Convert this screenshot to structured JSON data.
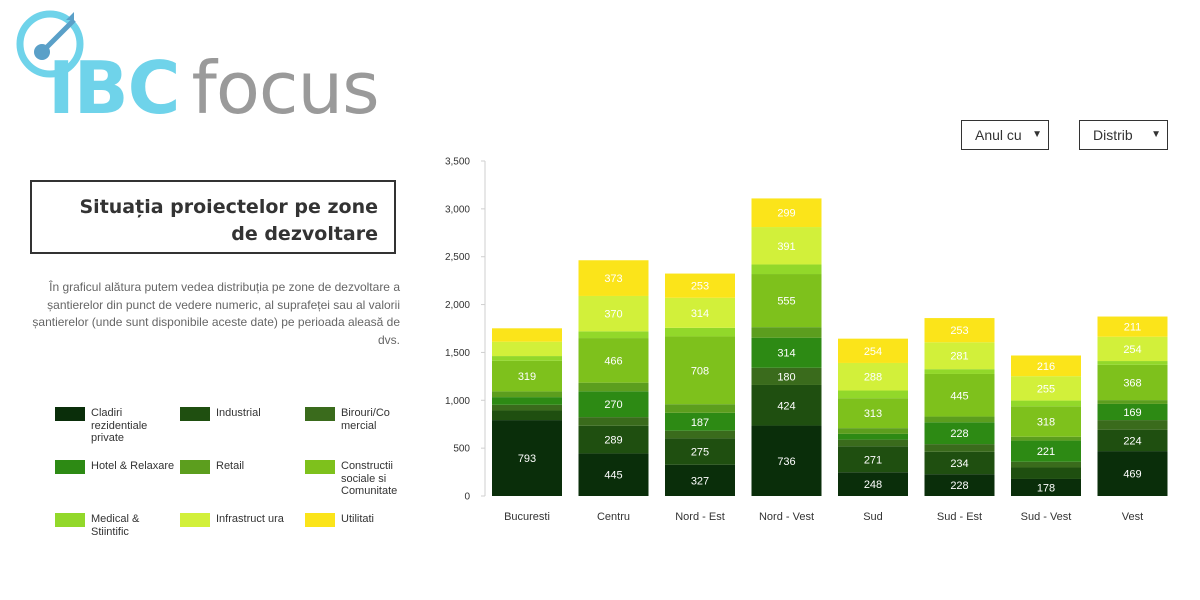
{
  "logo": {
    "ibc": "IBC",
    "focus": "focus"
  },
  "panel": {
    "title_line1": "Situația proiectelor pe zone",
    "title_line2": "de dezvoltare",
    "description": "În graficul alătura putem vedea distribuția pe zone de dezvoltare a șantierelor din punct de vedere numeric, al suprafeței sau al valorii șantierelor (unde sunt disponibile aceste date) pe perioada aleasă de dvs."
  },
  "controls": {
    "year_select": "Anul cu",
    "distribution_select": "Distrib",
    "arrow": "▼"
  },
  "colors": [
    "#0a2e0a",
    "#1f4f10",
    "#3a6b1c",
    "#2d8a14",
    "#5c9e1e",
    "#7ec11c",
    "#92d82a",
    "#d2f03a",
    "#fbe41a"
  ],
  "chart_data": {
    "type": "bar",
    "stacked": true,
    "categories": [
      "Bucuresti",
      "Centru",
      "Nord - Est",
      "Nord - Vest",
      "Sud",
      "Sud - Est",
      "Sud - Vest",
      "Vest"
    ],
    "ylim": [
      0,
      3500
    ],
    "yticks": [
      "0",
      "500",
      "1,000",
      "1,500",
      "2,000",
      "2,500",
      "3,000",
      "3,500"
    ],
    "ytick_values": [
      0,
      500,
      1000,
      1500,
      2000,
      2500,
      3000,
      3500
    ],
    "series": [
      {
        "name": "Cladiri rezidentiale private",
        "values": [
          793,
          445,
          327,
          736,
          248,
          228,
          178,
          469
        ],
        "labels": [
          "793",
          "445",
          "327",
          "736",
          "248",
          "228",
          "178",
          "469"
        ]
      },
      {
        "name": "Industrial",
        "values": [
          100,
          289,
          275,
          424,
          271,
          234,
          120,
          224
        ],
        "labels": [
          "",
          "289",
          "275",
          "424",
          "271",
          "234",
          "",
          "224"
        ]
      },
      {
        "name": "Birouri/Comercial",
        "values": [
          60,
          90,
          80,
          180,
          70,
          80,
          60,
          100
        ],
        "labels": [
          "",
          "",
          "",
          "180",
          "",
          "",
          "",
          ""
        ]
      },
      {
        "name": "Hotel & Relaxare",
        "values": [
          80,
          270,
          187,
          314,
          60,
          228,
          221,
          169
        ],
        "labels": [
          "",
          "270",
          "187",
          "314",
          "",
          "228",
          "221",
          "169"
        ]
      },
      {
        "name": "Retail",
        "values": [
          60,
          90,
          90,
          110,
          60,
          60,
          40,
          40
        ],
        "labels": [
          "",
          "",
          "",
          "",
          "",
          "",
          "",
          ""
        ]
      },
      {
        "name": "Constructii sociale si Comunitate",
        "values": [
          319,
          466,
          708,
          555,
          313,
          445,
          318,
          368
        ],
        "labels": [
          "319",
          "466",
          "708",
          "555",
          "313",
          "445",
          "318",
          "368"
        ]
      },
      {
        "name": "Medical & Stiintific",
        "values": [
          50,
          70,
          90,
          100,
          80,
          50,
          60,
          40
        ],
        "labels": [
          "",
          "",
          "",
          "",
          "",
          "",
          "",
          ""
        ]
      },
      {
        "name": "Infrastructura",
        "values": [
          150,
          370,
          314,
          391,
          288,
          281,
          255,
          254
        ],
        "labels": [
          "",
          "370",
          "314",
          "391",
          "288",
          "281",
          "255",
          "254"
        ]
      },
      {
        "name": "Utilitati",
        "values": [
          140,
          373,
          253,
          299,
          254,
          253,
          216,
          211
        ],
        "labels": [
          "",
          "373",
          "253",
          "299",
          "254",
          "253",
          "216",
          "211"
        ]
      }
    ]
  },
  "legend": [
    {
      "label": "Cladiri rezidentiale private"
    },
    {
      "label": "Industrial"
    },
    {
      "label": "Birouri/Co mercial"
    },
    {
      "label": "Hotel & Relaxare"
    },
    {
      "label": "Retail"
    },
    {
      "label": "Constructii sociale si Comunitate"
    },
    {
      "label": "Medical & Stiintific"
    },
    {
      "label": "Infrastruct ura"
    },
    {
      "label": "Utilitati"
    }
  ]
}
